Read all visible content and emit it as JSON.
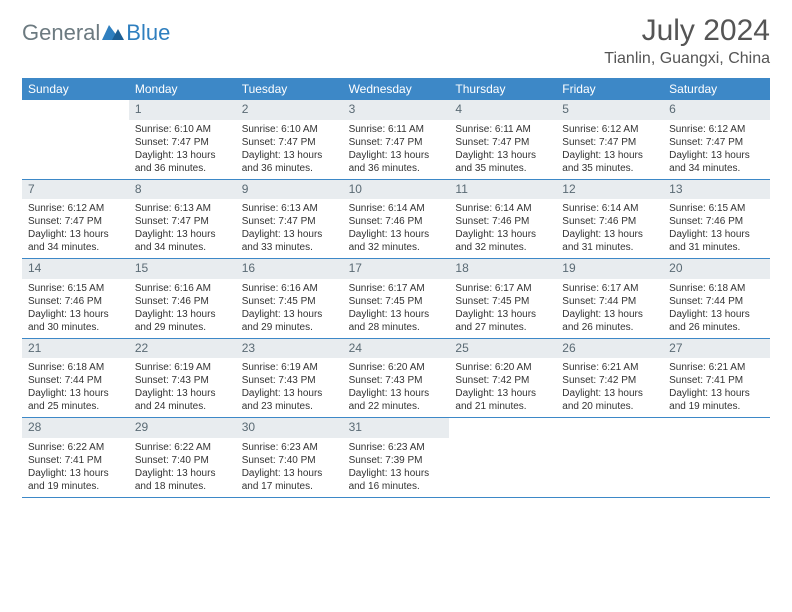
{
  "brand": {
    "part1": "General",
    "part2": "Blue"
  },
  "title": "July 2024",
  "location": "Tianlin, Guangxi, China",
  "colors": {
    "header_bg": "#3d88c7",
    "header_fg": "#ffffff",
    "daynum_bg": "#e8ecef",
    "daynum_fg": "#5a6a74",
    "rule": "#3d88c7",
    "logo_gray": "#6c7a80",
    "logo_blue": "#2f7fbf"
  },
  "typography": {
    "title_size_pt": 30,
    "location_size_pt": 16,
    "dow_size_pt": 12,
    "daynum_size_pt": 12,
    "body_size_pt": 10
  },
  "dow": [
    "Sunday",
    "Monday",
    "Tuesday",
    "Wednesday",
    "Thursday",
    "Friday",
    "Saturday"
  ],
  "weeks": [
    [
      null,
      {
        "n": "1",
        "sr": "6:10 AM",
        "ss": "7:47 PM",
        "dl": "13 hours and 36 minutes."
      },
      {
        "n": "2",
        "sr": "6:10 AM",
        "ss": "7:47 PM",
        "dl": "13 hours and 36 minutes."
      },
      {
        "n": "3",
        "sr": "6:11 AM",
        "ss": "7:47 PM",
        "dl": "13 hours and 36 minutes."
      },
      {
        "n": "4",
        "sr": "6:11 AM",
        "ss": "7:47 PM",
        "dl": "13 hours and 35 minutes."
      },
      {
        "n": "5",
        "sr": "6:12 AM",
        "ss": "7:47 PM",
        "dl": "13 hours and 35 minutes."
      },
      {
        "n": "6",
        "sr": "6:12 AM",
        "ss": "7:47 PM",
        "dl": "13 hours and 34 minutes."
      }
    ],
    [
      {
        "n": "7",
        "sr": "6:12 AM",
        "ss": "7:47 PM",
        "dl": "13 hours and 34 minutes."
      },
      {
        "n": "8",
        "sr": "6:13 AM",
        "ss": "7:47 PM",
        "dl": "13 hours and 34 minutes."
      },
      {
        "n": "9",
        "sr": "6:13 AM",
        "ss": "7:47 PM",
        "dl": "13 hours and 33 minutes."
      },
      {
        "n": "10",
        "sr": "6:14 AM",
        "ss": "7:46 PM",
        "dl": "13 hours and 32 minutes."
      },
      {
        "n": "11",
        "sr": "6:14 AM",
        "ss": "7:46 PM",
        "dl": "13 hours and 32 minutes."
      },
      {
        "n": "12",
        "sr": "6:14 AM",
        "ss": "7:46 PM",
        "dl": "13 hours and 31 minutes."
      },
      {
        "n": "13",
        "sr": "6:15 AM",
        "ss": "7:46 PM",
        "dl": "13 hours and 31 minutes."
      }
    ],
    [
      {
        "n": "14",
        "sr": "6:15 AM",
        "ss": "7:46 PM",
        "dl": "13 hours and 30 minutes."
      },
      {
        "n": "15",
        "sr": "6:16 AM",
        "ss": "7:46 PM",
        "dl": "13 hours and 29 minutes."
      },
      {
        "n": "16",
        "sr": "6:16 AM",
        "ss": "7:45 PM",
        "dl": "13 hours and 29 minutes."
      },
      {
        "n": "17",
        "sr": "6:17 AM",
        "ss": "7:45 PM",
        "dl": "13 hours and 28 minutes."
      },
      {
        "n": "18",
        "sr": "6:17 AM",
        "ss": "7:45 PM",
        "dl": "13 hours and 27 minutes."
      },
      {
        "n": "19",
        "sr": "6:17 AM",
        "ss": "7:44 PM",
        "dl": "13 hours and 26 minutes."
      },
      {
        "n": "20",
        "sr": "6:18 AM",
        "ss": "7:44 PM",
        "dl": "13 hours and 26 minutes."
      }
    ],
    [
      {
        "n": "21",
        "sr": "6:18 AM",
        "ss": "7:44 PM",
        "dl": "13 hours and 25 minutes."
      },
      {
        "n": "22",
        "sr": "6:19 AM",
        "ss": "7:43 PM",
        "dl": "13 hours and 24 minutes."
      },
      {
        "n": "23",
        "sr": "6:19 AM",
        "ss": "7:43 PM",
        "dl": "13 hours and 23 minutes."
      },
      {
        "n": "24",
        "sr": "6:20 AM",
        "ss": "7:43 PM",
        "dl": "13 hours and 22 minutes."
      },
      {
        "n": "25",
        "sr": "6:20 AM",
        "ss": "7:42 PM",
        "dl": "13 hours and 21 minutes."
      },
      {
        "n": "26",
        "sr": "6:21 AM",
        "ss": "7:42 PM",
        "dl": "13 hours and 20 minutes."
      },
      {
        "n": "27",
        "sr": "6:21 AM",
        "ss": "7:41 PM",
        "dl": "13 hours and 19 minutes."
      }
    ],
    [
      {
        "n": "28",
        "sr": "6:22 AM",
        "ss": "7:41 PM",
        "dl": "13 hours and 19 minutes."
      },
      {
        "n": "29",
        "sr": "6:22 AM",
        "ss": "7:40 PM",
        "dl": "13 hours and 18 minutes."
      },
      {
        "n": "30",
        "sr": "6:23 AM",
        "ss": "7:40 PM",
        "dl": "13 hours and 17 minutes."
      },
      {
        "n": "31",
        "sr": "6:23 AM",
        "ss": "7:39 PM",
        "dl": "13 hours and 16 minutes."
      },
      null,
      null,
      null
    ]
  ],
  "labels": {
    "sunrise": "Sunrise:",
    "sunset": "Sunset:",
    "daylight": "Daylight:"
  }
}
